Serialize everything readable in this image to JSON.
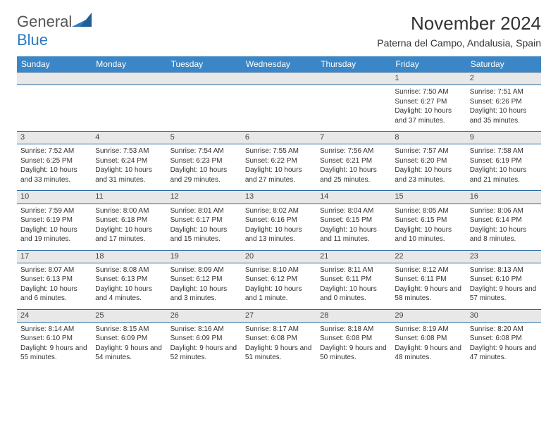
{
  "logo": {
    "text1": "General",
    "text2": "Blue"
  },
  "title": "November 2024",
  "location": "Paterna del Campo, Andalusia, Spain",
  "headers": [
    "Sunday",
    "Monday",
    "Tuesday",
    "Wednesday",
    "Thursday",
    "Friday",
    "Saturday"
  ],
  "colors": {
    "header_bg": "#3b86c6",
    "header_text": "#ffffff",
    "daynum_bg": "#e8e8e8",
    "border": "#2b6aa3",
    "logo_gray": "#555555",
    "logo_blue": "#2b7bbf"
  },
  "weeks": [
    {
      "nums": [
        "",
        "",
        "",
        "",
        "",
        "1",
        "2"
      ],
      "cells": [
        "",
        "",
        "",
        "",
        "",
        "Sunrise: 7:50 AM\nSunset: 6:27 PM\nDaylight: 10 hours and 37 minutes.",
        "Sunrise: 7:51 AM\nSunset: 6:26 PM\nDaylight: 10 hours and 35 minutes."
      ]
    },
    {
      "nums": [
        "3",
        "4",
        "5",
        "6",
        "7",
        "8",
        "9"
      ],
      "cells": [
        "Sunrise: 7:52 AM\nSunset: 6:25 PM\nDaylight: 10 hours and 33 minutes.",
        "Sunrise: 7:53 AM\nSunset: 6:24 PM\nDaylight: 10 hours and 31 minutes.",
        "Sunrise: 7:54 AM\nSunset: 6:23 PM\nDaylight: 10 hours and 29 minutes.",
        "Sunrise: 7:55 AM\nSunset: 6:22 PM\nDaylight: 10 hours and 27 minutes.",
        "Sunrise: 7:56 AM\nSunset: 6:21 PM\nDaylight: 10 hours and 25 minutes.",
        "Sunrise: 7:57 AM\nSunset: 6:20 PM\nDaylight: 10 hours and 23 minutes.",
        "Sunrise: 7:58 AM\nSunset: 6:19 PM\nDaylight: 10 hours and 21 minutes."
      ]
    },
    {
      "nums": [
        "10",
        "11",
        "12",
        "13",
        "14",
        "15",
        "16"
      ],
      "cells": [
        "Sunrise: 7:59 AM\nSunset: 6:19 PM\nDaylight: 10 hours and 19 minutes.",
        "Sunrise: 8:00 AM\nSunset: 6:18 PM\nDaylight: 10 hours and 17 minutes.",
        "Sunrise: 8:01 AM\nSunset: 6:17 PM\nDaylight: 10 hours and 15 minutes.",
        "Sunrise: 8:02 AM\nSunset: 6:16 PM\nDaylight: 10 hours and 13 minutes.",
        "Sunrise: 8:04 AM\nSunset: 6:15 PM\nDaylight: 10 hours and 11 minutes.",
        "Sunrise: 8:05 AM\nSunset: 6:15 PM\nDaylight: 10 hours and 10 minutes.",
        "Sunrise: 8:06 AM\nSunset: 6:14 PM\nDaylight: 10 hours and 8 minutes."
      ]
    },
    {
      "nums": [
        "17",
        "18",
        "19",
        "20",
        "21",
        "22",
        "23"
      ],
      "cells": [
        "Sunrise: 8:07 AM\nSunset: 6:13 PM\nDaylight: 10 hours and 6 minutes.",
        "Sunrise: 8:08 AM\nSunset: 6:13 PM\nDaylight: 10 hours and 4 minutes.",
        "Sunrise: 8:09 AM\nSunset: 6:12 PM\nDaylight: 10 hours and 3 minutes.",
        "Sunrise: 8:10 AM\nSunset: 6:12 PM\nDaylight: 10 hours and 1 minute.",
        "Sunrise: 8:11 AM\nSunset: 6:11 PM\nDaylight: 10 hours and 0 minutes.",
        "Sunrise: 8:12 AM\nSunset: 6:11 PM\nDaylight: 9 hours and 58 minutes.",
        "Sunrise: 8:13 AM\nSunset: 6:10 PM\nDaylight: 9 hours and 57 minutes."
      ]
    },
    {
      "nums": [
        "24",
        "25",
        "26",
        "27",
        "28",
        "29",
        "30"
      ],
      "cells": [
        "Sunrise: 8:14 AM\nSunset: 6:10 PM\nDaylight: 9 hours and 55 minutes.",
        "Sunrise: 8:15 AM\nSunset: 6:09 PM\nDaylight: 9 hours and 54 minutes.",
        "Sunrise: 8:16 AM\nSunset: 6:09 PM\nDaylight: 9 hours and 52 minutes.",
        "Sunrise: 8:17 AM\nSunset: 6:08 PM\nDaylight: 9 hours and 51 minutes.",
        "Sunrise: 8:18 AM\nSunset: 6:08 PM\nDaylight: 9 hours and 50 minutes.",
        "Sunrise: 8:19 AM\nSunset: 6:08 PM\nDaylight: 9 hours and 48 minutes.",
        "Sunrise: 8:20 AM\nSunset: 6:08 PM\nDaylight: 9 hours and 47 minutes."
      ]
    }
  ]
}
